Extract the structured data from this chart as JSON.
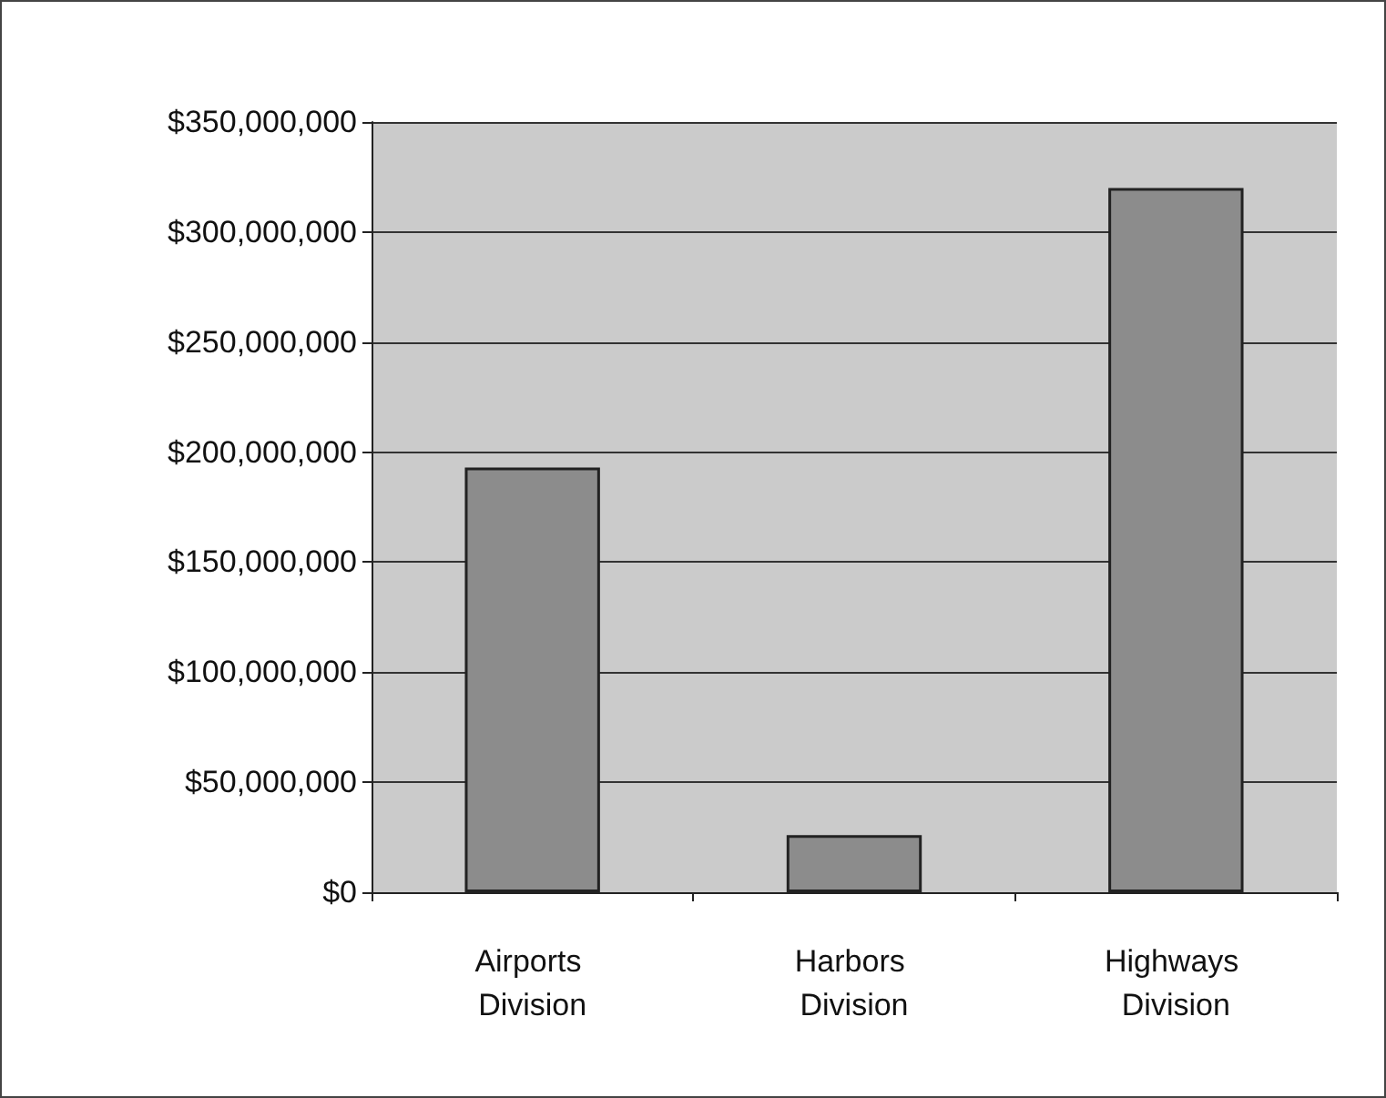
{
  "chart_data": {
    "type": "bar",
    "categories": [
      "Airports Division",
      "Harbors Division",
      "Highways Division"
    ],
    "values": [
      193000000,
      26000000,
      320000000
    ],
    "color": "#8c8c8c",
    "ylim": [
      0,
      350000000
    ],
    "yticks": [
      {
        "value": 0,
        "label": "$0"
      },
      {
        "value": 50000000,
        "label": "$50,000,000"
      },
      {
        "value": 100000000,
        "label": "$100,000,000"
      },
      {
        "value": 150000000,
        "label": "$150,000,000"
      },
      {
        "value": 200000000,
        "label": "$200,000,000"
      },
      {
        "value": 250000000,
        "label": "$250,000,000"
      },
      {
        "value": 300000000,
        "label": "$300,000,000"
      },
      {
        "value": 350000000,
        "label": "$350,000,000"
      }
    ],
    "grid": "y"
  }
}
